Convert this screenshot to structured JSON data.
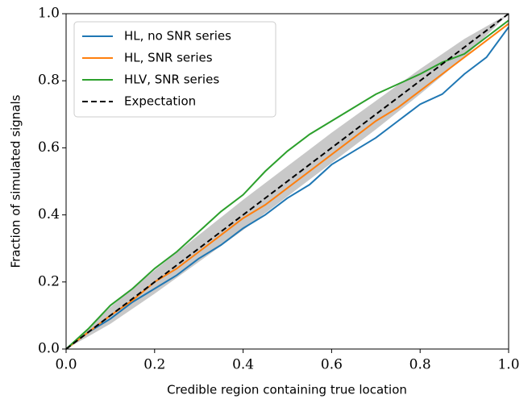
{
  "chart_data": {
    "type": "line",
    "x_label": "Credible region containing true location",
    "y_label": "Fraction of simulated signals",
    "xlim": [
      0,
      1
    ],
    "ylim": [
      0,
      1
    ],
    "xticks": [
      {
        "value": 0,
        "label": "0.0"
      },
      0.2,
      0.4,
      0.6,
      0.8,
      {
        "value": 1,
        "label": "1.0"
      }
    ],
    "yticks": [
      {
        "value": 0,
        "label": "0.0"
      },
      0.2,
      0.4,
      0.6,
      0.8,
      {
        "value": 1,
        "label": "1.0"
      }
    ],
    "legend": "upper left",
    "band": {
      "color": "#c8c8c8",
      "x": [
        0,
        0.1,
        0.2,
        0.3,
        0.4,
        0.5,
        0.6,
        0.7,
        0.8,
        0.9,
        1
      ],
      "lower": [
        0,
        0.075,
        0.165,
        0.26,
        0.355,
        0.455,
        0.555,
        0.655,
        0.76,
        0.87,
        1
      ],
      "upper": [
        0,
        0.125,
        0.235,
        0.34,
        0.445,
        0.545,
        0.645,
        0.74,
        0.835,
        0.925,
        1
      ]
    },
    "x": [
      0,
      0.05,
      0.1,
      0.15,
      0.2,
      0.25,
      0.3,
      0.35,
      0.4,
      0.45,
      0.5,
      0.55,
      0.6,
      0.65,
      0.7,
      0.75,
      0.8,
      0.85,
      0.9,
      0.95,
      1
    ],
    "series": [
      {
        "name": "HL, no SNR series",
        "color": "#1f77b4",
        "values": [
          0,
          0.05,
          0.09,
          0.14,
          0.18,
          0.22,
          0.27,
          0.31,
          0.36,
          0.4,
          0.45,
          0.49,
          0.55,
          0.59,
          0.63,
          0.68,
          0.73,
          0.76,
          0.82,
          0.87,
          0.96
        ]
      },
      {
        "name": "HL, SNR series",
        "color": "#ff7f0e",
        "values": [
          0,
          0.05,
          0.1,
          0.145,
          0.2,
          0.24,
          0.29,
          0.34,
          0.39,
          0.43,
          0.48,
          0.53,
          0.58,
          0.63,
          0.68,
          0.72,
          0.77,
          0.82,
          0.87,
          0.92,
          0.97
        ]
      },
      {
        "name": "HLV, SNR series",
        "color": "#2ca02c",
        "values": [
          0,
          0.06,
          0.13,
          0.18,
          0.24,
          0.29,
          0.35,
          0.41,
          0.46,
          0.53,
          0.59,
          0.64,
          0.68,
          0.72,
          0.76,
          0.79,
          0.82,
          0.855,
          0.88,
          0.93,
          0.98
        ]
      }
    ],
    "expectation": {
      "name": "Expectation",
      "color": "#000000",
      "x": [
        0,
        1
      ],
      "values": [
        0,
        1
      ]
    }
  }
}
